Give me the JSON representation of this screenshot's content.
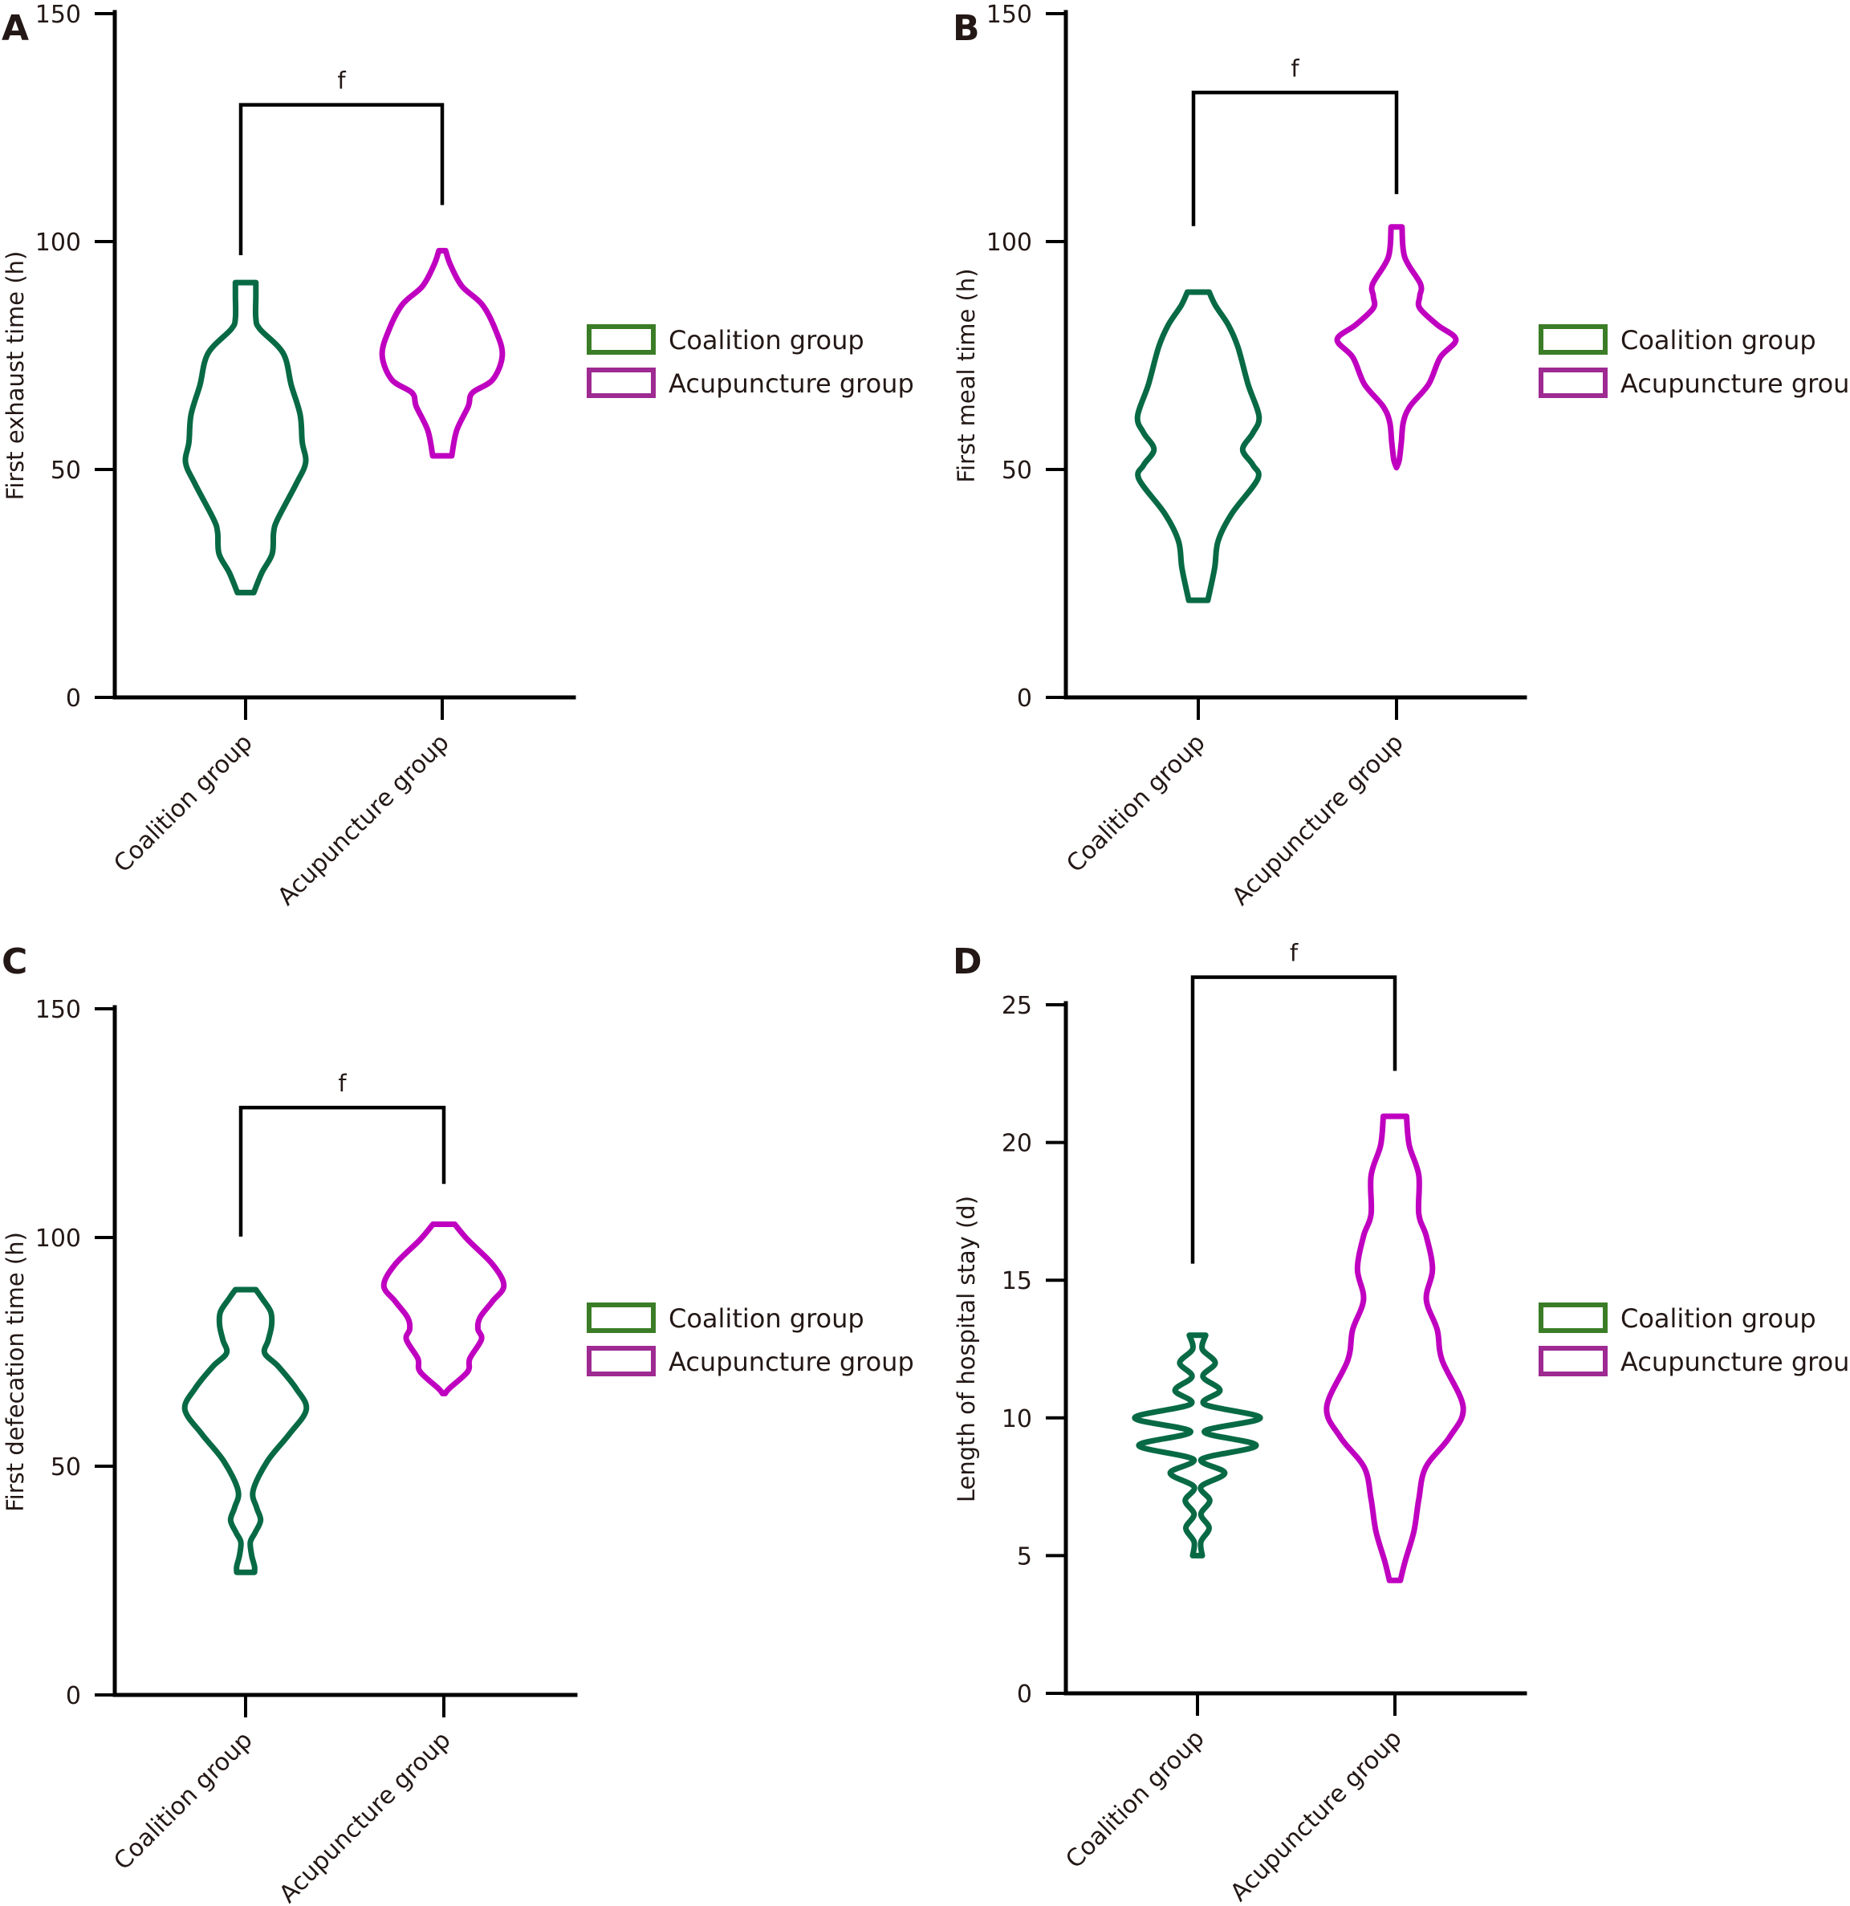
{
  "colors": {
    "coalition_line": "#086a45",
    "acupuncture_line": "#c000c0",
    "coalition_legend": "#3b7d27",
    "acupuncture_legend": "#9e2a92",
    "axis": "#000000",
    "text": "#231815"
  },
  "chart_data": [
    {
      "panel": "A",
      "type": "violin",
      "ylabel": "First exhaust time (h)",
      "ylim": [
        0,
        150
      ],
      "yticks": [
        "0",
        "50",
        "100",
        "150"
      ],
      "ytick_values": [
        0,
        50,
        100,
        150
      ],
      "categories": [
        "Coalition group",
        "Acupuncture group"
      ],
      "legend": [
        "Coalition group",
        "Acupuncture group"
      ],
      "legend_position": "right",
      "significance": {
        "label": "f",
        "bracket_y": 130,
        "left_end": 97,
        "right_end": 108
      },
      "series": [
        {
          "name": "Coalition group",
          "min": 23,
          "max": 91,
          "density": [
            [
              23,
              0.12
            ],
            [
              27.4,
              0.24
            ],
            [
              31.5,
              0.39
            ],
            [
              36.2,
              0.41
            ],
            [
              39.1,
              0.47
            ],
            [
              46.8,
              0.74
            ],
            [
              51.5,
              0.88
            ],
            [
              56,
              0.83
            ],
            [
              62,
              0.8
            ],
            [
              68.5,
              0.67
            ],
            [
              75.5,
              0.55
            ],
            [
              80.8,
              0.21
            ],
            [
              83.2,
              0.15
            ],
            [
              88,
              0.15
            ],
            [
              91,
              0.15
            ]
          ]
        },
        {
          "name": "Acupuncture group",
          "min": 53,
          "max": 98,
          "density": [
            [
              53,
              0.14
            ],
            [
              58.5,
              0.21
            ],
            [
              63.8,
              0.38
            ],
            [
              66.8,
              0.44
            ],
            [
              69.7,
              0.74
            ],
            [
              75,
              0.88
            ],
            [
              80.3,
              0.79
            ],
            [
              86.1,
              0.59
            ],
            [
              90.2,
              0.29
            ],
            [
              94.9,
              0.12
            ],
            [
              98,
              0.05
            ]
          ]
        }
      ]
    },
    {
      "panel": "B",
      "type": "violin",
      "ylabel": "First meal time (h)",
      "ylim": [
        0,
        150
      ],
      "yticks": [
        "0",
        "50",
        "100",
        "150"
      ],
      "ytick_values": [
        0,
        50,
        100,
        150
      ],
      "categories": [
        "Coalition group",
        "Acupuncture group"
      ],
      "legend": [
        "Coalition group",
        "Acupuncture group"
      ],
      "legend_position": "right",
      "significance": {
        "label": "f",
        "bracket_y": 132.7,
        "left_end": 103.4,
        "right_end": 110.4
      },
      "series": [
        {
          "name": "Coalition group",
          "min": 21,
          "max": 89,
          "density": [
            [
              21.3,
              0.14
            ],
            [
              28.4,
              0.24
            ],
            [
              34.3,
              0.29
            ],
            [
              40.3,
              0.49
            ],
            [
              47.9,
              0.87
            ],
            [
              51,
              0.8
            ],
            [
              54.4,
              0.65
            ],
            [
              58,
              0.8
            ],
            [
              61.6,
              0.89
            ],
            [
              68.7,
              0.73
            ],
            [
              76.9,
              0.58
            ],
            [
              81.7,
              0.44
            ],
            [
              86,
              0.25
            ],
            [
              88.9,
              0.16
            ]
          ]
        },
        {
          "name": "Acupuncture group",
          "min": 51,
          "max": 103,
          "density": [
            [
              50.4,
              0.0
            ],
            [
              52.1,
              0.04
            ],
            [
              56,
              0.07
            ],
            [
              60.4,
              0.1
            ],
            [
              63.9,
              0.2
            ],
            [
              68.7,
              0.47
            ],
            [
              74.6,
              0.64
            ],
            [
              78.5,
              0.87
            ],
            [
              81.7,
              0.6
            ],
            [
              85.4,
              0.34
            ],
            [
              88,
              0.34
            ],
            [
              90.7,
              0.35
            ],
            [
              96.6,
              0.12
            ],
            [
              103.2,
              0.08
            ]
          ]
        }
      ]
    },
    {
      "panel": "C",
      "type": "violin",
      "ylabel": "First defecation time (h)",
      "ylim": [
        0,
        150
      ],
      "yticks": [
        "0",
        "50",
        "100",
        "150"
      ],
      "ytick_values": [
        0,
        50,
        100,
        150
      ],
      "categories": [
        "Coalition group",
        "Acupuncture group"
      ],
      "legend": [
        "Coalition group",
        "Acupuncture group"
      ],
      "legend_position": "right",
      "significance": {
        "label": "f",
        "bracket_y": 128.4,
        "left_end": 100.2,
        "right_end": 111.7
      },
      "series": [
        {
          "name": "Coalition group",
          "min": 27,
          "max": 89,
          "density": [
            [
              26.8,
              0.13
            ],
            [
              28.1,
              0.13
            ],
            [
              30.5,
              0.09
            ],
            [
              33.4,
              0.07
            ],
            [
              35.5,
              0.14
            ],
            [
              38.2,
              0.22
            ],
            [
              41,
              0.16
            ],
            [
              44.7,
              0.11
            ],
            [
              51.1,
              0.32
            ],
            [
              57,
              0.64
            ],
            [
              62.4,
              0.89
            ],
            [
              67,
              0.74
            ],
            [
              71.8,
              0.48
            ],
            [
              74.7,
              0.28
            ],
            [
              77.5,
              0.33
            ],
            [
              80.7,
              0.38
            ],
            [
              83.7,
              0.37
            ],
            [
              86.5,
              0.25
            ],
            [
              88.6,
              0.15
            ]
          ]
        },
        {
          "name": "Acupuncture group",
          "min": 66,
          "max": 103,
          "density": [
            [
              65.9,
              0.02
            ],
            [
              67,
              0.08
            ],
            [
              70.7,
              0.35
            ],
            [
              73.5,
              0.38
            ],
            [
              77.7,
              0.55
            ],
            [
              80,
              0.5
            ],
            [
              82.5,
              0.53
            ],
            [
              86,
              0.71
            ],
            [
              89.5,
              0.88
            ],
            [
              94.2,
              0.71
            ],
            [
              99.5,
              0.35
            ],
            [
              102.9,
              0.16
            ]
          ]
        }
      ]
    },
    {
      "panel": "D",
      "type": "violin",
      "ylabel": "Length of hospital stay (d)",
      "ylim": [
        0,
        25
      ],
      "yticks": [
        "0",
        "5",
        "10",
        "15",
        "20",
        "25"
      ],
      "ytick_values": [
        0,
        5,
        10,
        15,
        20,
        25
      ],
      "categories": [
        "Coalition group",
        "Acupuncture group"
      ],
      "legend": [
        "Coalition group",
        "Acupuncture group"
      ],
      "legend_position": "right",
      "significance": {
        "label": "f",
        "bracket_y": 26,
        "left_end": 15.6,
        "right_end": 22.6
      },
      "series": [
        {
          "name": "Coalition group",
          "min": 5,
          "max": 13,
          "filled": true,
          "density": [
            [
              5,
              0.07
            ],
            [
              5.5,
              0.05
            ],
            [
              6,
              0.17
            ],
            [
              6.5,
              0.05
            ],
            [
              7,
              0.18
            ],
            [
              7.5,
              0.05
            ],
            [
              8,
              0.4
            ],
            [
              8.5,
              0.06
            ],
            [
              9,
              0.86
            ],
            [
              9.5,
              0.1
            ],
            [
              10,
              0.92
            ],
            [
              10.5,
              0.1
            ],
            [
              11,
              0.33
            ],
            [
              11.5,
              0.08
            ],
            [
              12,
              0.26
            ],
            [
              12.5,
              0.07
            ],
            [
              13,
              0.12
            ]
          ]
        },
        {
          "name": "Acupuncture group",
          "min": 4,
          "max": 21,
          "density": [
            [
              4.1,
              0.08
            ],
            [
              4.8,
              0.15
            ],
            [
              5.9,
              0.28
            ],
            [
              7.05,
              0.35
            ],
            [
              8.2,
              0.45
            ],
            [
              9.3,
              0.8
            ],
            [
              10.4,
              1.0
            ],
            [
              12.1,
              0.69
            ],
            [
              13.2,
              0.62
            ],
            [
              14.3,
              0.46
            ],
            [
              15.4,
              0.55
            ],
            [
              16.6,
              0.46
            ],
            [
              17.4,
              0.35
            ],
            [
              18.8,
              0.35
            ],
            [
              19.9,
              0.21
            ],
            [
              20.95,
              0.17
            ]
          ]
        }
      ]
    }
  ]
}
